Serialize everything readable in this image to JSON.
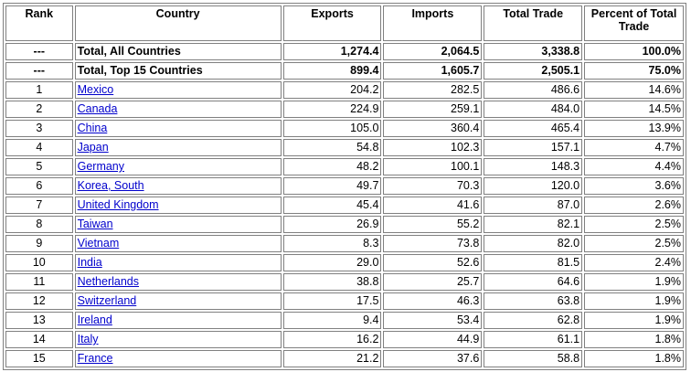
{
  "columns": {
    "rank": "Rank",
    "country": "Country",
    "exports": "Exports",
    "imports": "Imports",
    "total_trade": "Total Trade",
    "percent": "Percent of Total Trade"
  },
  "totals": [
    {
      "rank": "---",
      "country": "Total, All Countries",
      "exports": "1,274.4",
      "imports": "2,064.5",
      "total": "3,338.8",
      "percent": "100.0%"
    },
    {
      "rank": "---",
      "country": "Total, Top 15 Countries",
      "exports": "899.4",
      "imports": "1,605.7",
      "total": "2,505.1",
      "percent": "75.0%"
    }
  ],
  "rows": [
    {
      "rank": "1",
      "country": "Mexico",
      "exports": "204.2",
      "imports": "282.5",
      "total": "486.6",
      "percent": "14.6%"
    },
    {
      "rank": "2",
      "country": "Canada",
      "exports": "224.9",
      "imports": "259.1",
      "total": "484.0",
      "percent": "14.5%"
    },
    {
      "rank": "3",
      "country": "China",
      "exports": "105.0",
      "imports": "360.4",
      "total": "465.4",
      "percent": "13.9%"
    },
    {
      "rank": "4",
      "country": "Japan",
      "exports": "54.8",
      "imports": "102.3",
      "total": "157.1",
      "percent": "4.7%"
    },
    {
      "rank": "5",
      "country": "Germany",
      "exports": "48.2",
      "imports": "100.1",
      "total": "148.3",
      "percent": "4.4%"
    },
    {
      "rank": "6",
      "country": "Korea, South",
      "exports": "49.7",
      "imports": "70.3",
      "total": "120.0",
      "percent": "3.6%"
    },
    {
      "rank": "7",
      "country": "United Kingdom",
      "exports": "45.4",
      "imports": "41.6",
      "total": "87.0",
      "percent": "2.6%"
    },
    {
      "rank": "8",
      "country": "Taiwan",
      "exports": "26.9",
      "imports": "55.2",
      "total": "82.1",
      "percent": "2.5%"
    },
    {
      "rank": "9",
      "country": "Vietnam",
      "exports": "8.3",
      "imports": "73.8",
      "total": "82.0",
      "percent": "2.5%"
    },
    {
      "rank": "10",
      "country": "India",
      "exports": "29.0",
      "imports": "52.6",
      "total": "81.5",
      "percent": "2.4%"
    },
    {
      "rank": "11",
      "country": "Netherlands",
      "exports": "38.8",
      "imports": "25.7",
      "total": "64.6",
      "percent": "1.9%"
    },
    {
      "rank": "12",
      "country": "Switzerland",
      "exports": "17.5",
      "imports": "46.3",
      "total": "63.8",
      "percent": "1.9%"
    },
    {
      "rank": "13",
      "country": "Ireland",
      "exports": "9.4",
      "imports": "53.4",
      "total": "62.8",
      "percent": "1.9%"
    },
    {
      "rank": "14",
      "country": "Italy",
      "exports": "16.2",
      "imports": "44.9",
      "total": "61.1",
      "percent": "1.8%"
    },
    {
      "rank": "15",
      "country": "France",
      "exports": "21.2",
      "imports": "37.6",
      "total": "58.8",
      "percent": "1.8%"
    }
  ],
  "colors": {
    "link": "#0000cc",
    "border": "#808080"
  }
}
